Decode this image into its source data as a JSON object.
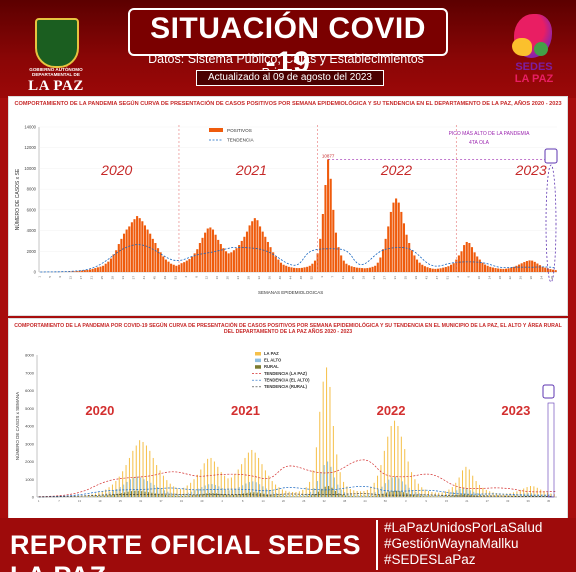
{
  "header": {
    "title": "SITUACIÓN COVID -19",
    "subtitle": "Datos: Sistema Público, Cajas y Establecimientos Privados",
    "updated": "Actualizado al 09 de agosto del 2023",
    "left_logo": {
      "org": "GOBIERNO AUTÓNOMO DEPARTAMENTAL DE",
      "city": "LA PAZ",
      "icon": "coat-of-arms-icon"
    },
    "right_logo": {
      "line1": "SEDES",
      "line2": "LA PAZ",
      "icon": "sedes-logo-icon"
    }
  },
  "chart_data": [
    {
      "type": "bar",
      "title": "COMPORTAMIENTO DE LA PANDEMIA SEGÚN CURVA DE PRESENTACIÓN DE CASOS POSITIVOS POR SEMANA EPIDEMIOLÓGICA Y SU TENDENCIA EN EL DEPARTAMENTO DE LA PAZ, AÑOS 2020 - 2023",
      "xlabel": "SEMANAS EPIDEMIOLOGICAS",
      "ylabel": "NÚMERO DE CASOS x SE",
      "ylim": [
        0,
        14000
      ],
      "yticks": [
        0,
        2000,
        4000,
        6000,
        8000,
        10000,
        12000,
        14000
      ],
      "legend": [
        "POSITIVOS",
        "TENDENCIA"
      ],
      "year_labels": [
        "2020",
        "2021",
        "2022",
        "2023"
      ],
      "peak_annotation": "PICO MÁS ALTO DE LA PANDEMIA",
      "peak_annotation_sub": "4TA OLA",
      "peak_value": 10877,
      "series": [
        {
          "name": "POSITIVOS",
          "values": [
            0,
            0,
            0,
            0,
            0,
            3,
            8,
            10,
            12,
            14,
            16,
            30,
            42,
            59,
            80,
            110,
            140,
            180,
            200,
            240,
            300,
            380,
            450,
            520,
            600,
            800,
            1000,
            1300,
            1700,
            2100,
            2700,
            3200,
            3700,
            4100,
            4400,
            4800,
            5100,
            5400,
            5200,
            4900,
            4500,
            4100,
            3700,
            3200,
            2800,
            2300,
            1900,
            1500,
            1200,
            1000,
            800,
            700,
            600,
            700,
            850,
            950,
            1100,
            1250,
            1500,
            1800,
            2200,
            2800,
            3300,
            3800,
            4200,
            4300,
            4100,
            3600,
            3100,
            2700,
            2300,
            2000,
            1800,
            1900,
            2100,
            2300,
            2600,
            3000,
            3400,
            3900,
            4500,
            4900,
            5200,
            5000,
            4400,
            3900,
            3400,
            2900,
            2400,
            1900,
            1500,
            1200,
            900,
            700,
            600,
            500,
            450,
            400,
            380,
            380,
            400,
            450,
            500,
            600,
            800,
            1100,
            1800,
            3200,
            5600,
            8400,
            10877,
            9000,
            6000,
            3800,
            2400,
            1600,
            1100,
            800,
            650,
            550,
            480,
            420,
            400,
            380,
            360,
            380,
            420,
            500,
            600,
            900,
            1400,
            2200,
            3200,
            4400,
            5800,
            6700,
            7100,
            6700,
            5800,
            4700,
            3600,
            2800,
            2100,
            1600,
            1200,
            900,
            700,
            560,
            460,
            380,
            320,
            300,
            320,
            360,
            420,
            480,
            560,
            700,
            850,
            1200,
            1600,
            2000,
            2600,
            2900,
            2800,
            2400,
            1900,
            1500,
            1200,
            900,
            720,
            600,
            500,
            430,
            380,
            340,
            310,
            300,
            320,
            360,
            420,
            500,
            600,
            720,
            840,
            960,
            1060,
            1120,
            1100,
            980,
            820,
            660,
            520,
            420,
            340,
            280,
            220,
            180
          ]
        }
      ]
    },
    {
      "type": "bar",
      "title": "COMPORTAMIENTO DE LA PANDEMIA POR COVID-19 SEGÚN CURVA DE PRESENTACIÓN DE CASOS POSITIVOS POR SEMANA EPIDEMIOLÓGICA Y SU TENDENCIA EN EL MUNICIPIO DE LA PAZ, EL ALTO Y ÁREA RURAL DEL DEPARTAMENTO DE LA PAZ AÑOS 2020 - 2023",
      "ylabel": "NÚMERO DE CASOS x SEMANA",
      "ylim": [
        0,
        8000
      ],
      "yticks": [
        0,
        1000,
        2000,
        3000,
        4000,
        5000,
        6000,
        7000,
        8000
      ],
      "legend": [
        "LA PAZ",
        "EL ALTO",
        "RURAL",
        "TENDENCIA (LA PAZ)",
        "TENDENCIA (EL ALTO)",
        "TENDENCIA (RURAL)"
      ],
      "year_labels": [
        "2020",
        "2021",
        "2022",
        "2023"
      ],
      "series": [
        {
          "name": "LA PAZ",
          "values": [
            0,
            0,
            0,
            0,
            0,
            5,
            8,
            10,
            12,
            15,
            20,
            30,
            45,
            60,
            90,
            120,
            160,
            200,
            260,
            330,
            420,
            550,
            700,
            900,
            1150,
            1450,
            1800,
            2200,
            2600,
            2900,
            3200,
            3100,
            2900,
            2600,
            2200,
            1800,
            1500,
            1200,
            950,
            750,
            600,
            500,
            450,
            520,
            650,
            800,
            1000,
            1250,
            1550,
            1900,
            2150,
            2200,
            2000,
            1700,
            1400,
            1200,
            1050,
            1100,
            1300,
            1550,
            1850,
            2200,
            2500,
            2650,
            2500,
            2200,
            1850,
            1500,
            1200,
            900,
            700,
            550,
            420,
            350,
            300,
            280,
            280,
            320,
            400,
            550,
            850,
            1500,
            2800,
            4800,
            6500,
            7300,
            6200,
            4000,
            2400,
            1400,
            850,
            600,
            450,
            380,
            340,
            320,
            340,
            400,
            550,
            800,
            1200,
            1800,
            2600,
            3400,
            4000,
            4300,
            4000,
            3400,
            2700,
            2000,
            1400,
            1000,
            750,
            550,
            420,
            340,
            280,
            250,
            240,
            260,
            320,
            420,
            560,
            800,
            1100,
            1500,
            1700,
            1550,
            1200,
            900,
            680,
            520,
            400,
            320,
            260,
            220,
            200,
            190,
            200,
            220,
            260,
            320,
            400,
            480,
            560,
            620,
            600,
            520,
            420,
            330,
            260,
            200,
            160
          ]
        },
        {
          "name": "EL ALTO",
          "values": [
            0,
            0,
            0,
            0,
            0,
            2,
            4,
            5,
            6,
            8,
            10,
            15,
            20,
            30,
            45,
            60,
            80,
            100,
            130,
            165,
            210,
            270,
            350,
            450,
            560,
            700,
            850,
            1000,
            1100,
            1150,
            1100,
            1000,
            900,
            800,
            680,
            560,
            460,
            380,
            300,
            240,
            200,
            170,
            160,
            190,
            240,
            300,
            380,
            470,
            560,
            650,
            720,
            730,
            680,
            600,
            500,
            430,
            380,
            400,
            470,
            560,
            660,
            760,
            840,
            880,
            830,
            720,
            600,
            480,
            380,
            300,
            230,
            180,
            140,
            120,
            100,
            95,
            95,
            110,
            140,
            190,
            290,
            500,
            900,
            1400,
            1800,
            2000,
            1700,
            1100,
            700,
            420,
            270,
            190,
            150,
            130,
            120,
            115,
            120,
            140,
            190,
            270,
            400,
            580,
            780,
            980,
            1100,
            1150,
            1050,
            880,
            700,
            520,
            380,
            280,
            210,
            160,
            130,
            110,
            100,
            95,
            100,
            120,
            160,
            210,
            290,
            380,
            480,
            530,
            480,
            380,
            290,
            220,
            170,
            130,
            105,
            90,
            80,
            75,
            72,
            75,
            82,
            95,
            115,
            140,
            170,
            200,
            220,
            210,
            180,
            150,
            120,
            95,
            75,
            60
          ]
        },
        {
          "name": "RURAL",
          "values": [
            0,
            0,
            0,
            0,
            0,
            1,
            2,
            2,
            3,
            4,
            5,
            7,
            10,
            14,
            20,
            28,
            38,
            50,
            62,
            78,
            98,
            120,
            150,
            185,
            220,
            260,
            300,
            330,
            350,
            350,
            330,
            300,
            270,
            240,
            200,
            170,
            140,
            115,
            95,
            80,
            70,
            62,
            60,
            70,
            85,
            105,
            130,
            155,
            180,
            205,
            220,
            220,
            205,
            180,
            155,
            135,
            120,
            125,
            145,
            170,
            200,
            230,
            255,
            265,
            250,
            220,
            185,
            150,
            120,
            95,
            75,
            60,
            48,
            40,
            35,
            33,
            33,
            38,
            48,
            65,
            100,
            170,
            300,
            460,
            580,
            620,
            520,
            340,
            210,
            130,
            85,
            62,
            50,
            44,
            42,
            40,
            42,
            48,
            62,
            88,
            130,
            185,
            250,
            310,
            340,
            350,
            320,
            270,
            215,
            160,
            120,
            90,
            68,
            52,
            43,
            37,
            34,
            32,
            34,
            40,
            52,
            70,
            95,
            125,
            155,
            170,
            155,
            125,
            95,
            72,
            56,
            44,
            36,
            31,
            28,
            26,
            25,
            26,
            28,
            32,
            38,
            46,
            55,
            64,
            70,
            68,
            60,
            50,
            40,
            32,
            26,
            21
          ]
        }
      ]
    }
  ],
  "footer": {
    "title": "REPORTE OFICIAL SEDES LA PAZ",
    "hashtags": [
      "#LaPazUnidosPorLaSalud",
      "#GestiónWaynaMallku",
      "#SEDESLaPaz"
    ]
  },
  "colors": {
    "header_bg": "#7a0000",
    "positivos": "#ef5b0c",
    "tendencia": "#1565c0",
    "peak_line": "#9c27b0",
    "la_paz": "#f5c04a",
    "el_alto": "#8fbfe0",
    "rural": "#7b7b30",
    "year_label_p1": "#c62828",
    "year_label_p2": "#d32f2f"
  }
}
